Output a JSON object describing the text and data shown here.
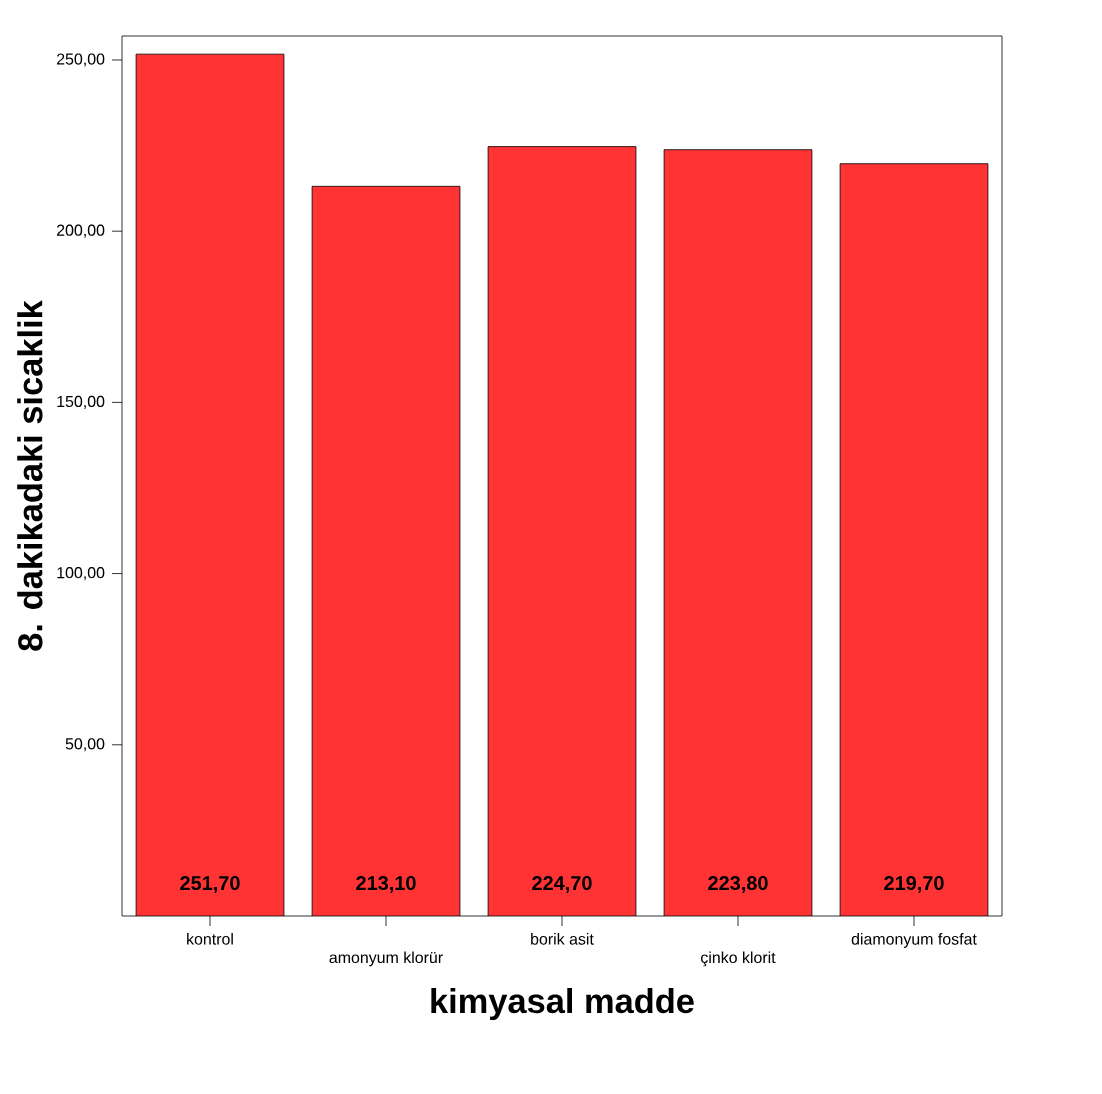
{
  "chart_data": {
    "type": "bar",
    "xlabel": "kimyasal madde",
    "ylabel": "8. dakikadaki sicaklik",
    "categories": [
      "kontrol",
      "amonyum klorür",
      "borik asit",
      "çinko klorit",
      "diamonyum fosfat"
    ],
    "values": [
      251.7,
      213.1,
      224.7,
      223.8,
      219.7
    ],
    "value_labels": [
      "251,70",
      "213,10",
      "224,70",
      "223,80",
      "219,70"
    ],
    "color": "#ff3333",
    "ylim": [
      0,
      257
    ],
    "yticks": [
      {
        "value": 50,
        "label": "50,00"
      },
      {
        "value": 100,
        "label": "100,00"
      },
      {
        "value": 150,
        "label": "150,00"
      },
      {
        "value": 200,
        "label": "200,00"
      },
      {
        "value": 250,
        "label": "250,00"
      }
    ],
    "grid": false
  }
}
